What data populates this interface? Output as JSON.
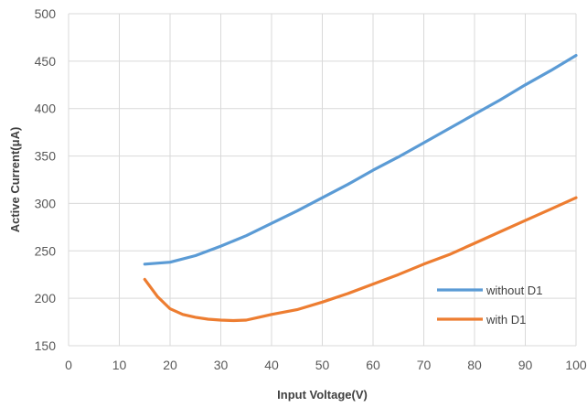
{
  "chart_data": {
    "type": "line",
    "xlabel": "Input Voltage(V)",
    "ylabel": "Active Current(μA)",
    "xlim": [
      0,
      100
    ],
    "ylim": [
      150,
      500
    ],
    "x_ticks": [
      "0",
      "10",
      "20",
      "30",
      "40",
      "50",
      "60",
      "70",
      "80",
      "90",
      "100"
    ],
    "y_ticks": [
      "150",
      "200",
      "250",
      "300",
      "350",
      "400",
      "450",
      "500"
    ],
    "grid": true,
    "legend_position": "bottom-right",
    "series": [
      {
        "name": "without D1",
        "color": "#5B9BD5",
        "x": [
          15,
          20,
          25,
          30,
          35,
          40,
          45,
          50,
          55,
          60,
          65,
          70,
          75,
          80,
          85,
          90,
          95,
          100
        ],
        "y": [
          236,
          238,
          245,
          255,
          266,
          279,
          292,
          306,
          320,
          335,
          349,
          364,
          379,
          394,
          409,
          425,
          440,
          456
        ]
      },
      {
        "name": "with D1",
        "color": "#ED7D31",
        "x": [
          15,
          17.5,
          20,
          22.5,
          25,
          27.5,
          30,
          32.5,
          35,
          37.5,
          40,
          45,
          50,
          55,
          60,
          65,
          70,
          75,
          80,
          85,
          90,
          95,
          100
        ],
        "y": [
          220,
          202,
          189,
          183,
          180,
          178,
          177,
          176.5,
          177,
          180,
          183,
          188,
          196,
          205,
          215,
          225,
          236,
          246,
          258,
          270,
          282,
          294,
          306
        ]
      }
    ]
  }
}
